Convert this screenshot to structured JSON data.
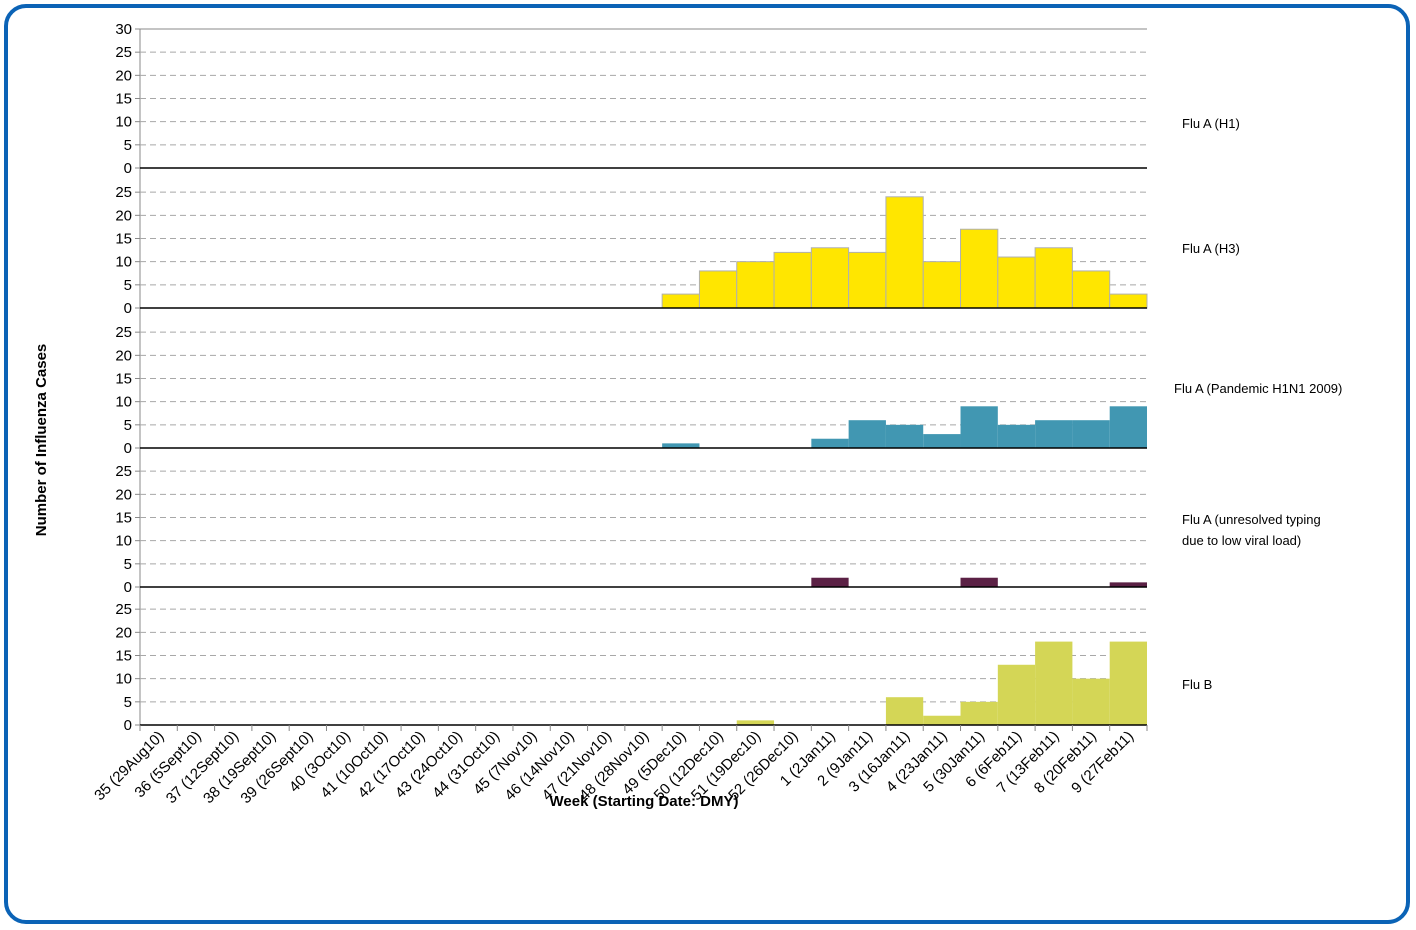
{
  "chart_data": {
    "type": "bar",
    "layout": "stacked-panels",
    "ylabel": "Number of Influenza Cases",
    "xlabel": "Week (Starting Date: DMY)",
    "yticks": [
      0,
      5,
      10,
      15,
      20,
      25
    ],
    "ytick_top": 30,
    "ylim": [
      0,
      30
    ],
    "grid": true,
    "categories": [
      "35 (29Aug10)",
      "36 (5Sept10)",
      "37 (12Sept10)",
      "38 (19Sept10)",
      "39 (26Sept10)",
      "40 (3Oct10)",
      "41 (10Oct10)",
      "42 (17Oct10)",
      "43 (24Oct10)",
      "44 (31Oct10)",
      "45 (7Nov10)",
      "46 (14Nov10)",
      "47 (21Nov10)",
      "48 (28Nov10)",
      "49 (5Dec10)",
      "50 (12Dec10)",
      "51 (19Dec10)",
      "52 (26Dec10)",
      "1 (2Jan11)",
      "2 (9Jan11)",
      "3 (16Jan11)",
      "4 (23Jan11)",
      "5 (30Jan11)",
      "6 (6Feb11)",
      "7 (13Feb11)",
      "8 (20Feb11)",
      "9 (27Feb11)"
    ],
    "series": [
      {
        "name": "Flu A (H1)",
        "color": "#ffe600",
        "values": [
          0,
          0,
          0,
          0,
          0,
          0,
          0,
          0,
          0,
          0,
          0,
          0,
          0,
          0,
          0,
          0,
          0,
          0,
          0,
          0,
          0,
          0,
          0,
          0,
          0,
          0,
          0
        ]
      },
      {
        "name": "Flu A (H3)",
        "color": "#ffe600",
        "values": [
          0,
          0,
          0,
          0,
          0,
          0,
          0,
          0,
          0,
          0,
          0,
          0,
          0,
          0,
          3,
          8,
          10,
          12,
          13,
          12,
          24,
          10,
          17,
          11,
          13,
          8,
          3
        ]
      },
      {
        "name": "Flu A (Pandemic H1N1 2009)",
        "color": "#4197b2",
        "values": [
          0,
          0,
          0,
          0,
          0,
          0,
          0,
          0,
          0,
          0,
          0,
          0,
          0,
          0,
          1,
          0,
          0,
          0,
          2,
          6,
          5,
          3,
          9,
          5,
          6,
          6,
          9
        ]
      },
      {
        "name": "Flu A (unresolved typing due to low viral load)",
        "label_lines": [
          "Flu A (unresolved typing",
          "due to low viral load)"
        ],
        "color": "#5b2145",
        "values": [
          0,
          0,
          0,
          0,
          0,
          0,
          0,
          0,
          0,
          0,
          0,
          0,
          0,
          0,
          0,
          0,
          0,
          0,
          2,
          0,
          0,
          0,
          2,
          0,
          0,
          0,
          1
        ]
      },
      {
        "name": "Flu B",
        "color": "#d4d656",
        "values": [
          0,
          0,
          0,
          0,
          0,
          0,
          0,
          0,
          0,
          0,
          0,
          0,
          0,
          0,
          0,
          0,
          1,
          0,
          0,
          0,
          6,
          2,
          5,
          13,
          18,
          10,
          18
        ]
      }
    ]
  }
}
